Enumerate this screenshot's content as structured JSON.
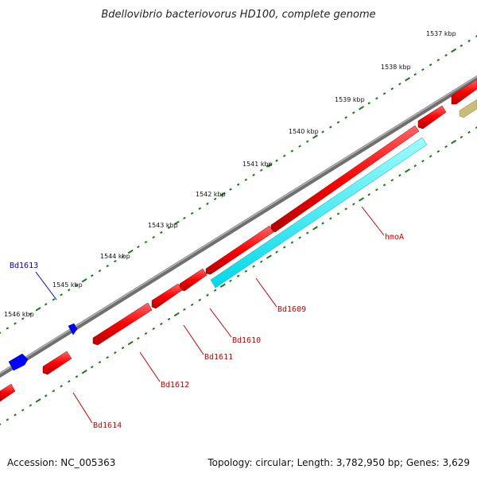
{
  "header": {
    "title": "Bdellovibrio bacteriovorus HD100, complete genome"
  },
  "footer": {
    "accession": "Accession: NC_005363",
    "summary": "Topology: circular; Length: 3,782,950 bp; Genes: 3,629"
  },
  "ruler": {
    "ticks": [
      "1537 kbp",
      "1538 kbp",
      "1539 kbp",
      "1540 kbp",
      "1541 kbp",
      "1542 kbp",
      "1543 kbp",
      "1544 kbp",
      "1545 kbp",
      "1546 kbp"
    ]
  },
  "genes": [
    {
      "name": "Bd1609",
      "color": "#cc0000"
    },
    {
      "name": "Bd1610",
      "color": "#cc0000"
    },
    {
      "name": "Bd1611",
      "color": "#cc0000"
    },
    {
      "name": "Bd1612",
      "color": "#cc0000"
    },
    {
      "name": "Bd1613",
      "color": "#0000cc"
    },
    {
      "name": "Bd1614",
      "color": "#cc0000"
    },
    {
      "name": "hmoA",
      "color": "#cc0000"
    }
  ],
  "colors": {
    "forward_gene": "#ff0000",
    "reverse_gene": "#0000ff",
    "highlight_gene": "#00e5ee",
    "other_feature": "#c8bd79",
    "backbone": "#808080",
    "tick": "#1a7a1a"
  }
}
